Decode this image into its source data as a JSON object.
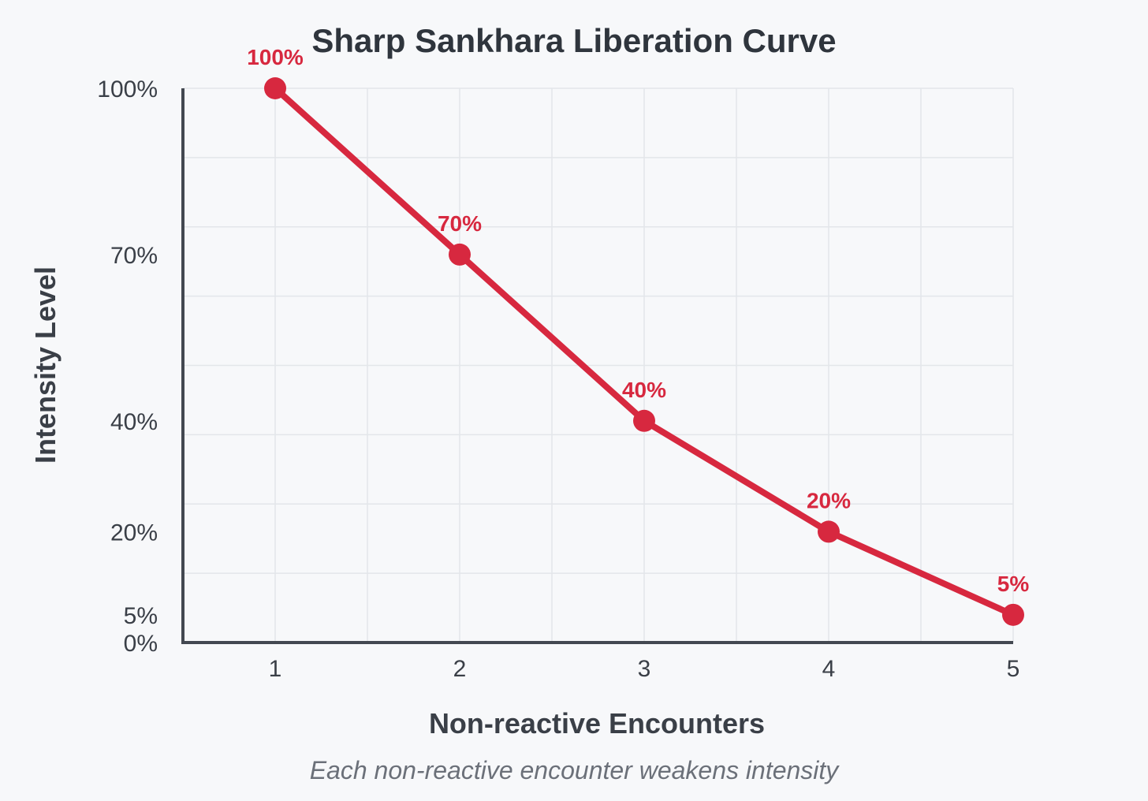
{
  "chart_data": {
    "type": "line",
    "title": "Sharp Sankhara Liberation Curve",
    "xlabel": "Non-reactive Encounters",
    "ylabel": "Intensity Level",
    "caption": "Each non-reactive encounter weakens intensity",
    "x": [
      1,
      2,
      3,
      4,
      5
    ],
    "x_tick_labels": [
      "1",
      "2",
      "3",
      "4",
      "5"
    ],
    "xlim": [
      0.5,
      5
    ],
    "ylim": [
      0,
      100
    ],
    "y_ticks": [
      0,
      5,
      20,
      40,
      70,
      100
    ],
    "y_tick_labels": [
      "0%",
      "5%",
      "20%",
      "40%",
      "70%",
      "100%"
    ],
    "grid": true,
    "series": [
      {
        "name": "Intensity",
        "values": [
          100,
          70,
          40,
          20,
          5
        ],
        "labels": [
          "100%",
          "70%",
          "40%",
          "20%",
          "5%"
        ],
        "color": "#d7283f"
      }
    ]
  }
}
